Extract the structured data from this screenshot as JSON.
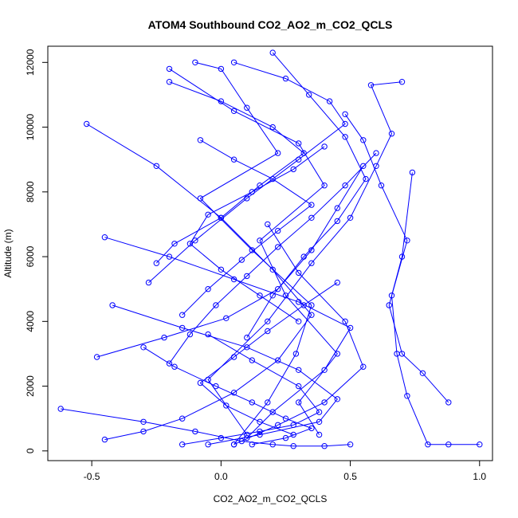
{
  "chart_data": {
    "type": "line",
    "title": "ATOM4 Southbound CO2_AO2_m_CO2_QCLS",
    "xlabel": "CO2_AO2_m_CO2_QCLS",
    "ylabel": "Altitude (m)",
    "xlim": [
      -0.67,
      1.05
    ],
    "ylim": [
      -300,
      12500
    ],
    "xticks": [
      -0.5,
      0.0,
      0.5,
      1.0
    ],
    "xtick_labels": [
      "-0.5",
      "0.0",
      "0.5",
      "1.0"
    ],
    "yticks": [
      0,
      2000,
      4000,
      6000,
      8000,
      10000,
      12000
    ],
    "ytick_labels": [
      "0",
      "2000",
      "4000",
      "6000",
      "8000",
      "10000",
      "12000"
    ],
    "grid": false,
    "legend": "none",
    "marker": "open-circle",
    "series_color": "#0000ff",
    "series": [
      {
        "x": [
          0.05,
          0.18,
          0.29,
          0.35,
          0.12,
          -0.08,
          0.22,
          0.1,
          0.0,
          -0.1
        ],
        "y": [
          200,
          1500,
          3000,
          4500,
          6200,
          7800,
          9200,
          10600,
          11800,
          12000
        ]
      },
      {
        "x": [
          -0.2,
          0.05,
          0.3,
          0.4,
          0.15,
          0.25,
          0.45,
          0.3,
          0.38
        ],
        "y": [
          11800,
          10500,
          9500,
          8200,
          6500,
          4800,
          3000,
          1500,
          500
        ]
      },
      {
        "x": [
          0.1,
          -0.05,
          0.18,
          0.35,
          0.5,
          0.6,
          0.66,
          0.58,
          0.7
        ],
        "y": [
          500,
          2200,
          4000,
          5800,
          7200,
          8800,
          9800,
          11300,
          11400
        ]
      },
      {
        "x": [
          -0.52,
          -0.25,
          0.0,
          0.2,
          0.35,
          0.22,
          0.05,
          -0.15,
          -0.3,
          -0.45
        ],
        "y": [
          10100,
          8800,
          7200,
          5600,
          4200,
          2800,
          1800,
          1000,
          600,
          350
        ]
      },
      {
        "x": [
          -0.62,
          -0.3,
          -0.1,
          0.08,
          0.2,
          0.28,
          0.4,
          0.5
        ],
        "y": [
          1300,
          900,
          600,
          300,
          200,
          150,
          150,
          200
        ]
      },
      {
        "x": [
          -0.45,
          -0.2,
          0.05,
          0.3,
          0.5,
          0.4,
          0.2,
          0.1
        ],
        "y": [
          6600,
          6000,
          5300,
          4600,
          3800,
          2500,
          1200,
          400
        ]
      },
      {
        "x": [
          -0.48,
          -0.22,
          0.02,
          0.22,
          0.35,
          0.45,
          0.55
        ],
        "y": [
          2900,
          3500,
          4100,
          5000,
          6200,
          7500,
          8800
        ]
      },
      {
        "x": [
          -0.42,
          -0.15,
          0.1,
          0.3,
          0.45,
          0.38,
          0.15,
          -0.05
        ],
        "y": [
          4500,
          3800,
          3200,
          2500,
          1600,
          900,
          500,
          200
        ]
      },
      {
        "x": [
          1.0,
          0.88,
          0.8,
          0.72,
          0.68,
          0.66,
          0.7,
          0.74
        ],
        "y": [
          200,
          200,
          200,
          1700,
          3000,
          4800,
          6000,
          8600
        ]
      },
      {
        "x": [
          0.88,
          0.78,
          0.7,
          0.65,
          0.72,
          0.62,
          0.55,
          0.48
        ],
        "y": [
          1500,
          2400,
          3000,
          4500,
          6500,
          8200,
          9600,
          10400
        ]
      },
      {
        "x": [
          -0.28,
          -0.1,
          0.1,
          0.3,
          0.48,
          0.42,
          0.25,
          0.05
        ],
        "y": [
          5200,
          6500,
          7800,
          9000,
          10100,
          10800,
          11500,
          12000
        ]
      },
      {
        "x": [
          -0.2,
          0.0,
          0.2,
          0.32,
          0.15,
          0.0,
          -0.18,
          -0.25
        ],
        "y": [
          11400,
          10800,
          10000,
          9200,
          8200,
          7200,
          6400,
          5800
        ]
      },
      {
        "x": [
          0.05,
          0.22,
          0.4,
          0.55,
          0.48,
          0.3,
          0.18
        ],
        "y": [
          200,
          800,
          1500,
          2600,
          4000,
          5500,
          7000
        ]
      },
      {
        "x": [
          -0.15,
          0.0,
          0.15,
          0.28,
          0.38,
          0.3,
          0.12,
          -0.05
        ],
        "y": [
          200,
          400,
          600,
          800,
          1200,
          2000,
          2800,
          3600
        ]
      },
      {
        "x": [
          0.3,
          0.15,
          0.0,
          -0.12,
          -0.05,
          0.12,
          0.28,
          0.4
        ],
        "y": [
          4000,
          4800,
          5600,
          6400,
          7300,
          8000,
          8700,
          9400
        ]
      },
      {
        "x": [
          -0.08,
          0.05,
          0.2,
          0.35,
          0.22,
          0.08,
          -0.05,
          -0.15
        ],
        "y": [
          9600,
          9000,
          8400,
          7600,
          6800,
          5900,
          5000,
          4200
        ]
      },
      {
        "x": [
          0.45,
          0.32,
          0.18,
          0.05,
          -0.08,
          0.02,
          0.15,
          0.28
        ],
        "y": [
          5200,
          4500,
          3700,
          2900,
          2100,
          1400,
          900,
          500
        ]
      },
      {
        "x": [
          0.2,
          0.34,
          0.48,
          0.56,
          0.45,
          0.32,
          0.2,
          0.1
        ],
        "y": [
          12300,
          11000,
          9700,
          8400,
          7100,
          6000,
          4800,
          3500
        ]
      },
      {
        "x": [
          -0.3,
          -0.18,
          -0.02,
          0.12,
          0.25,
          0.35,
          0.25,
          0.12
        ],
        "y": [
          3200,
          2600,
          2000,
          1500,
          1000,
          700,
          400,
          200
        ]
      },
      {
        "x": [
          0.6,
          0.48,
          0.35,
          0.22,
          0.1,
          -0.02,
          -0.12,
          -0.2
        ],
        "y": [
          9200,
          8200,
          7200,
          6300,
          5400,
          4500,
          3600,
          2700
        ]
      }
    ]
  }
}
